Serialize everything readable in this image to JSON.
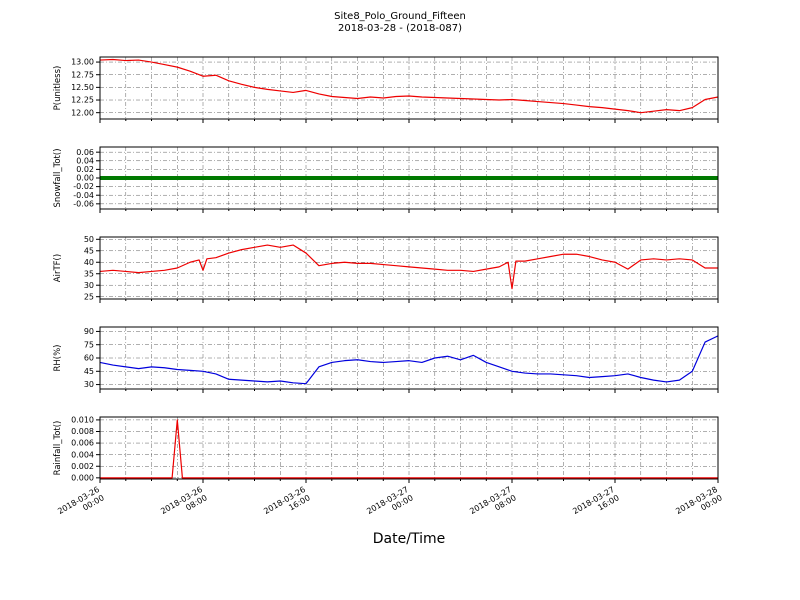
{
  "header": {
    "title": "Site8_Polo_Ground_Fifteen",
    "subtitle": "2018-03-28 - (2018-087)"
  },
  "chart_data": {
    "type": "line",
    "title": "Site8_Polo_Ground_Fifteen",
    "subtitle": "2018-03-28 - (2018-087)",
    "xlabel": "Date/Time",
    "x_unit": "hours since 2018-03-26 00:00",
    "xlim": [
      0,
      48
    ],
    "grid": {
      "vertical_interval_hours": 2,
      "style": "dash-dot",
      "color": "#444444"
    },
    "x_ticks": [
      {
        "hour": 0,
        "date": "2018-03-26",
        "time": "00:00"
      },
      {
        "hour": 8,
        "date": "2018-03-26",
        "time": "08:00"
      },
      {
        "hour": 16,
        "date": "2018-03-26",
        "time": "16:00"
      },
      {
        "hour": 24,
        "date": "2018-03-27",
        "time": "00:00"
      },
      {
        "hour": 32,
        "date": "2018-03-27",
        "time": "08:00"
      },
      {
        "hour": 40,
        "date": "2018-03-27",
        "time": "16:00"
      },
      {
        "hour": 48,
        "date": "2018-03-28",
        "time": "00:00"
      }
    ],
    "panels": [
      {
        "id": "p-unitless",
        "ylabel": "P(unitless)",
        "color": "#ee0000",
        "linewidth": 1.2,
        "ylim": [
          11.875,
          13.1
        ],
        "yticks": [
          "12.00",
          "12.25",
          "12.50",
          "12.75",
          "13.00"
        ],
        "ytick_values": [
          12.0,
          12.25,
          12.5,
          12.75,
          13.0
        ],
        "x": [
          0,
          1,
          2,
          3,
          4,
          5,
          6,
          7,
          8,
          9,
          10,
          11,
          12,
          13,
          14,
          15,
          16,
          17,
          18,
          19,
          20,
          21,
          22,
          23,
          24,
          25,
          26,
          27,
          28,
          29,
          30,
          31,
          32,
          33,
          34,
          35,
          36,
          37,
          38,
          39,
          40,
          41,
          42,
          43,
          44,
          45,
          46,
          47,
          48
        ],
        "values": [
          13.04,
          13.05,
          13.03,
          13.04,
          13.0,
          12.95,
          12.9,
          12.82,
          12.72,
          12.74,
          12.63,
          12.56,
          12.5,
          12.46,
          12.43,
          12.4,
          12.44,
          12.37,
          12.32,
          12.3,
          12.28,
          12.31,
          12.29,
          12.32,
          12.33,
          12.31,
          12.3,
          12.29,
          12.28,
          12.27,
          12.26,
          12.25,
          12.26,
          12.24,
          12.22,
          12.2,
          12.18,
          12.15,
          12.12,
          12.1,
          12.07,
          12.04,
          12.0,
          12.03,
          12.06,
          12.04,
          12.1,
          12.26,
          12.31
        ]
      },
      {
        "id": "snowfall-tot",
        "ylabel": "Snowfall_Tot()",
        "color": "#007a00",
        "linewidth": 4,
        "ylim": [
          -0.072,
          0.072
        ],
        "yticks": [
          "-0.06",
          "-0.04",
          "-0.02",
          "0.00",
          "0.02",
          "0.04",
          "0.06"
        ],
        "ytick_values": [
          -0.06,
          -0.04,
          -0.02,
          0.0,
          0.02,
          0.04,
          0.06
        ],
        "x": [
          0,
          48
        ],
        "values": [
          0.0,
          0.0
        ]
      },
      {
        "id": "airtf",
        "ylabel": "AirTF()",
        "color": "#ee0000",
        "linewidth": 1.2,
        "ylim": [
          24,
          51
        ],
        "yticks": [
          "25",
          "30",
          "35",
          "40",
          "45",
          "50"
        ],
        "ytick_values": [
          25,
          30,
          35,
          40,
          45,
          50
        ],
        "x": [
          0,
          1,
          2,
          3,
          4,
          5,
          6,
          7,
          7.7,
          8,
          8.3,
          9,
          10,
          11,
          12,
          13,
          14,
          15,
          16,
          17,
          18,
          19,
          20,
          21,
          22,
          23,
          24,
          25,
          26,
          27,
          28,
          29,
          30,
          31,
          31.7,
          32,
          32.3,
          33,
          34,
          35,
          36,
          37,
          38,
          39,
          40,
          41,
          42,
          43,
          44,
          45,
          46,
          47,
          48
        ],
        "values": [
          36,
          36.5,
          36,
          35.5,
          36,
          36.5,
          37.5,
          40,
          41,
          36.5,
          41.5,
          42,
          44,
          45.5,
          46.5,
          47.5,
          46.5,
          47.5,
          44,
          38.5,
          39.5,
          40,
          39.5,
          39.5,
          39,
          38.5,
          38,
          37.5,
          37,
          36.5,
          36.5,
          36,
          37,
          38,
          40,
          28.5,
          40.5,
          40.5,
          41.5,
          42.5,
          43.5,
          43.5,
          42.5,
          41,
          40,
          37,
          41,
          41.5,
          41,
          41.5,
          41,
          37.5,
          37.5
        ]
      },
      {
        "id": "rh",
        "ylabel": "RH(%)",
        "color": "#0000dd",
        "linewidth": 1.2,
        "ylim": [
          25,
          95
        ],
        "yticks": [
          "30",
          "45",
          "60",
          "75",
          "90"
        ],
        "ytick_values": [
          30,
          45,
          60,
          75,
          90
        ],
        "x": [
          0,
          1,
          2,
          3,
          4,
          5,
          6,
          7,
          8,
          9,
          10,
          11,
          12,
          13,
          14,
          15,
          16,
          17,
          18,
          19,
          20,
          21,
          22,
          23,
          24,
          25,
          26,
          27,
          28,
          29,
          30,
          31,
          32,
          33,
          34,
          35,
          36,
          37,
          38,
          39,
          40,
          41,
          42,
          43,
          44,
          45,
          46,
          47,
          48
        ],
        "values": [
          55,
          52,
          50,
          48,
          50,
          49,
          47,
          46,
          45,
          42,
          36,
          35,
          34,
          33,
          34,
          32,
          31,
          50,
          55,
          57,
          58,
          56,
          55,
          56,
          57,
          55,
          60,
          62,
          58,
          63,
          55,
          50,
          45,
          43,
          42,
          42,
          41,
          40,
          38,
          39,
          40,
          42,
          38,
          35,
          33,
          35,
          45,
          78,
          85
        ]
      },
      {
        "id": "rainfall-tot",
        "ylabel": "Rainfall_Tot()",
        "color": "#ee0000",
        "linewidth": 1.2,
        "ylim": [
          -0.0002,
          0.0105
        ],
        "yticks": [
          "0.000",
          "0.002",
          "0.004",
          "0.006",
          "0.008",
          "0.010"
        ],
        "ytick_values": [
          0.0,
          0.002,
          0.004,
          0.006,
          0.008,
          0.01
        ],
        "x": [
          0,
          5.6,
          6,
          6.4,
          48
        ],
        "values": [
          0.0,
          0.0,
          0.01,
          0.0,
          0.0
        ]
      }
    ]
  }
}
